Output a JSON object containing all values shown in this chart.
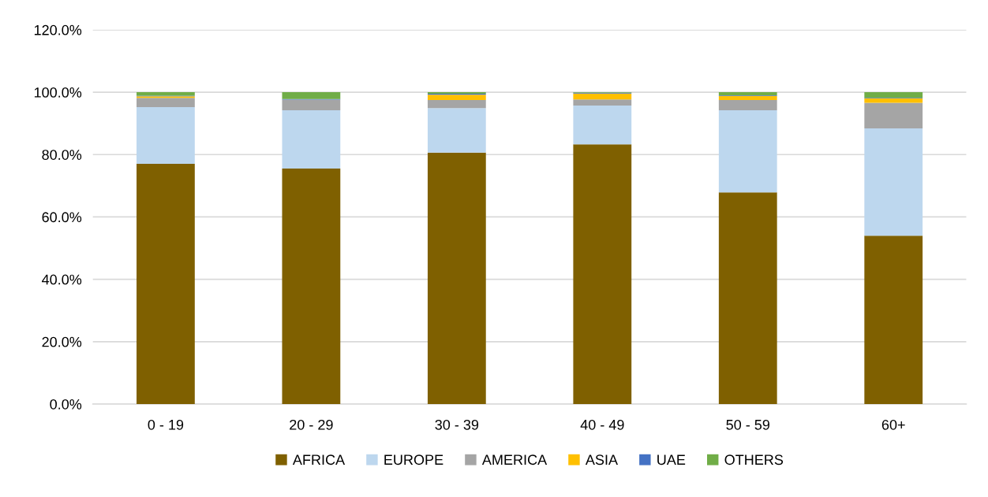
{
  "chart_data": {
    "type": "bar",
    "stacked": true,
    "categories": [
      "0 - 19",
      "20 - 29",
      "30 - 39",
      "40 - 49",
      "50 - 59",
      "60+"
    ],
    "series": [
      {
        "name": "AFRICA",
        "color": "#7f6000",
        "values": [
          77.0,
          75.5,
          80.6,
          83.3,
          67.9,
          54.0
        ]
      },
      {
        "name": "EUROPE",
        "color": "#bdd7ee",
        "values": [
          18.2,
          18.7,
          14.3,
          12.4,
          26.3,
          34.4
        ]
      },
      {
        "name": "AMERICA",
        "color": "#a5a5a5",
        "values": [
          3.0,
          3.4,
          2.6,
          2.0,
          3.3,
          8.2
        ]
      },
      {
        "name": "ASIA",
        "color": "#ffc000",
        "values": [
          0.5,
          0.0,
          1.7,
          1.9,
          1.3,
          1.4
        ]
      },
      {
        "name": "UAE",
        "color": "#4472c4",
        "values": [
          0.2,
          0.2,
          0.3,
          0.2,
          0.2,
          0.2
        ]
      },
      {
        "name": "OTHERS",
        "color": "#70ad47",
        "values": [
          1.1,
          2.2,
          0.5,
          0.2,
          1.0,
          1.8
        ]
      }
    ],
    "ylim": [
      0,
      120
    ],
    "yticks": [
      {
        "value": 0,
        "label": "0.0%"
      },
      {
        "value": 20,
        "label": "20.0%"
      },
      {
        "value": 40,
        "label": "40.0%"
      },
      {
        "value": 60,
        "label": "60.0%"
      },
      {
        "value": 80,
        "label": "80.0%"
      },
      {
        "value": 100,
        "label": "100.0%"
      },
      {
        "value": 120,
        "label": "120.0%"
      }
    ],
    "grid": "y",
    "legend": "bottom"
  }
}
